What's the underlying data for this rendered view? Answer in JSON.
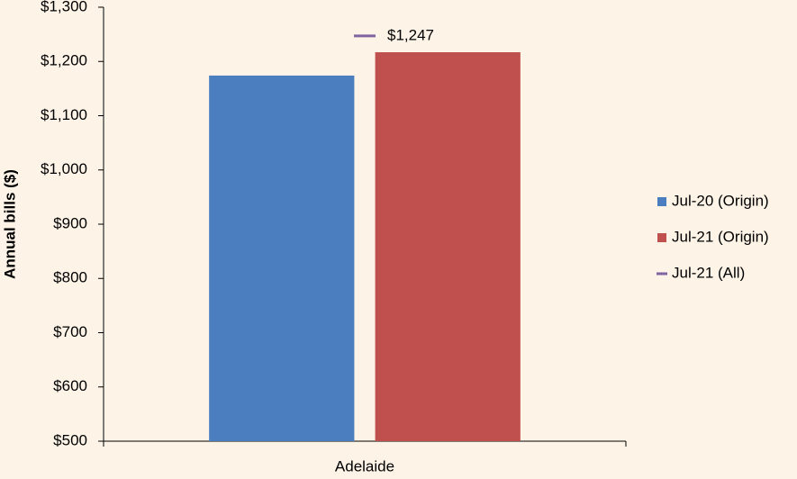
{
  "chart_data": {
    "type": "bar",
    "y_label": "Annual bills ($)",
    "categories": [
      "Adelaide"
    ],
    "series": [
      {
        "name": "Jul-20 (Origin)",
        "color": "#4a7ebf",
        "values": [
          1174
        ]
      },
      {
        "name": "Jul-21 (Origin)",
        "color": "#c0504d",
        "values": [
          1217
        ]
      },
      {
        "name": "Jul-21 (All)",
        "type": "line",
        "color": "#8064a2",
        "values": [
          1247
        ],
        "value_labels": [
          "$1,247"
        ]
      }
    ],
    "ylim": [
      500,
      1300
    ],
    "yticks": [
      {
        "value": 500,
        "label": "$500"
      },
      {
        "value": 600,
        "label": "$600"
      },
      {
        "value": 700,
        "label": "$700"
      },
      {
        "value": 800,
        "label": "$800"
      },
      {
        "value": 900,
        "label": "$900"
      },
      {
        "value": 1000,
        "label": "$1,000"
      },
      {
        "value": 1100,
        "label": "$1,100"
      },
      {
        "value": 1200,
        "label": "$1,200"
      },
      {
        "value": 1300,
        "label": "$1,300"
      }
    ],
    "grid": false,
    "legend": "right"
  }
}
